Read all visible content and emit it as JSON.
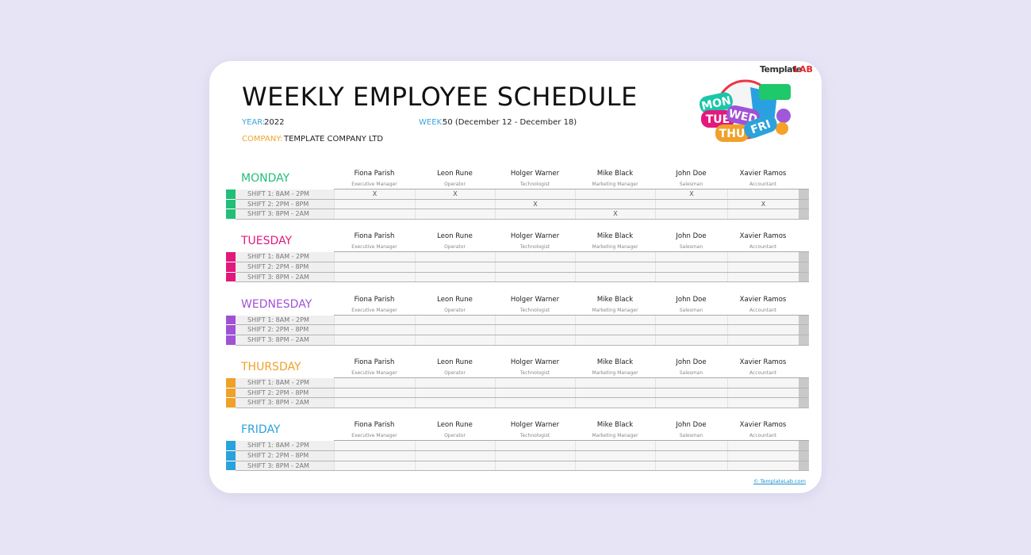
{
  "header": {
    "title": "WEEKLY EMPLOYEE SCHEDULE",
    "year_label": "YEAR:",
    "year": "2022",
    "week_label": "WEEK:",
    "week": "50 (December 12 - December 18)",
    "company_label": "COMPANY:",
    "company": "TEMPLATE COMPANY LTD"
  },
  "logo": {
    "brand": "Template",
    "brand_accent": "LAB"
  },
  "illustration": {
    "labels": [
      "MON",
      "TUE",
      "WED",
      "THU",
      "FRI"
    ]
  },
  "employees": [
    {
      "name": "Fiona Parish",
      "role": "Executive Manager"
    },
    {
      "name": "Leon Rune",
      "role": "Operator"
    },
    {
      "name": "Holger Warner",
      "role": "Technologist"
    },
    {
      "name": "Mike Black",
      "role": "Marketing Manager"
    },
    {
      "name": "John Doe",
      "role": "Salesman"
    },
    {
      "name": "Xavier Ramos",
      "role": "Accountant"
    }
  ],
  "shifts": [
    "SHIFT 1: 8AM - 2PM",
    "SHIFT 2: 2PM - 8PM",
    "SHIFT 3: 8PM - 2AM"
  ],
  "days": [
    {
      "name": "MONDAY",
      "color": "#22bf78",
      "assignments": [
        [
          "X",
          "X",
          null,
          null,
          "X",
          null
        ],
        [
          null,
          null,
          "X",
          null,
          null,
          "X"
        ],
        [
          null,
          null,
          null,
          "X",
          null,
          null
        ]
      ]
    },
    {
      "name": "TUESDAY",
      "color": "#e3187c",
      "assignments": [
        [
          null,
          null,
          null,
          null,
          null,
          null
        ],
        [
          null,
          null,
          null,
          null,
          null,
          null
        ],
        [
          null,
          null,
          null,
          null,
          null,
          null
        ]
      ]
    },
    {
      "name": "WEDNESDAY",
      "color": "#a052d4",
      "assignments": [
        [
          null,
          null,
          null,
          null,
          null,
          null
        ],
        [
          null,
          null,
          null,
          null,
          null,
          null
        ],
        [
          null,
          null,
          null,
          null,
          null,
          null
        ]
      ]
    },
    {
      "name": "THURSDAY",
      "color": "#efa12a",
      "assignments": [
        [
          null,
          null,
          null,
          null,
          null,
          null
        ],
        [
          null,
          null,
          null,
          null,
          null,
          null
        ],
        [
          null,
          null,
          null,
          null,
          null,
          null
        ]
      ]
    },
    {
      "name": "FRIDAY",
      "color": "#2ba2dc",
      "assignments": [
        [
          null,
          null,
          null,
          null,
          null,
          null
        ],
        [
          null,
          null,
          null,
          null,
          null,
          null
        ],
        [
          null,
          null,
          null,
          null,
          null,
          null
        ]
      ]
    }
  ],
  "footer": {
    "link": "© TemplateLab.com"
  }
}
